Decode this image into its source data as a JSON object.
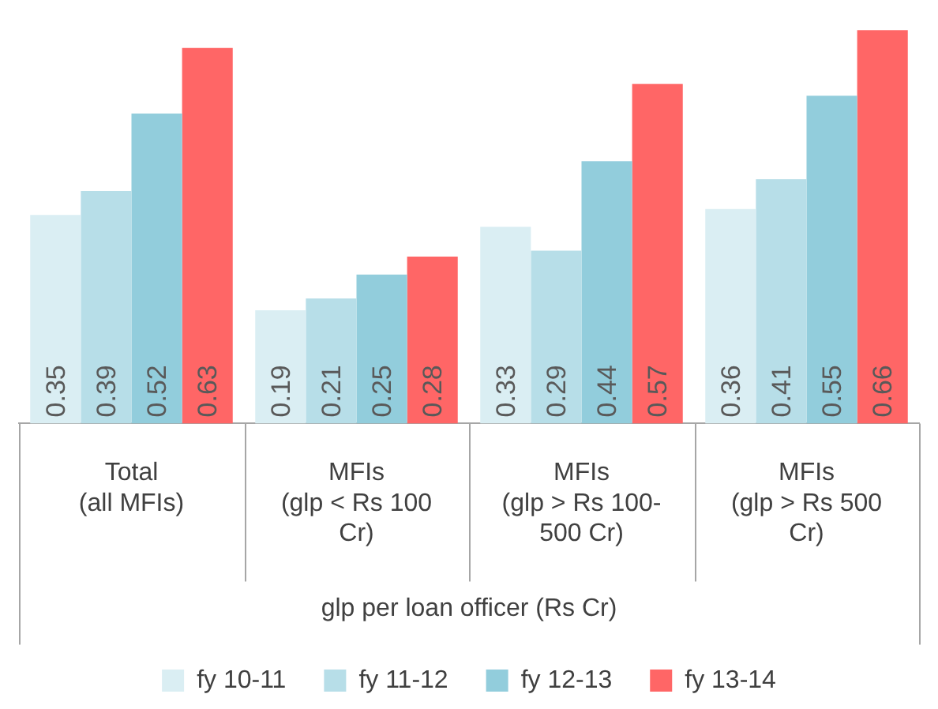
{
  "chart_data": {
    "type": "bar",
    "xlabel": "glp per loan officer (Rs Cr)",
    "categories": [
      "Total (all MFIs)",
      "MFIs (glp < Rs 100 Cr)",
      "MFIs (glp > Rs 100-500 Cr)",
      "MFIs (glp > Rs 500 Cr)"
    ],
    "series": [
      {
        "name": "fy 10-11",
        "color": "#daeef3",
        "values": [
          0.35,
          0.19,
          0.33,
          0.36
        ]
      },
      {
        "name": "fy 11-12",
        "color": "#b7dee8",
        "values": [
          0.39,
          0.21,
          0.29,
          0.41
        ]
      },
      {
        "name": "fy 12-13",
        "color": "#92cddc",
        "values": [
          0.52,
          0.25,
          0.44,
          0.55
        ]
      },
      {
        "name": "fy 13-14",
        "color": "#ff6666",
        "values": [
          0.63,
          0.28,
          0.57,
          0.66
        ]
      }
    ],
    "data_labels": true,
    "legend": "bottom"
  }
}
